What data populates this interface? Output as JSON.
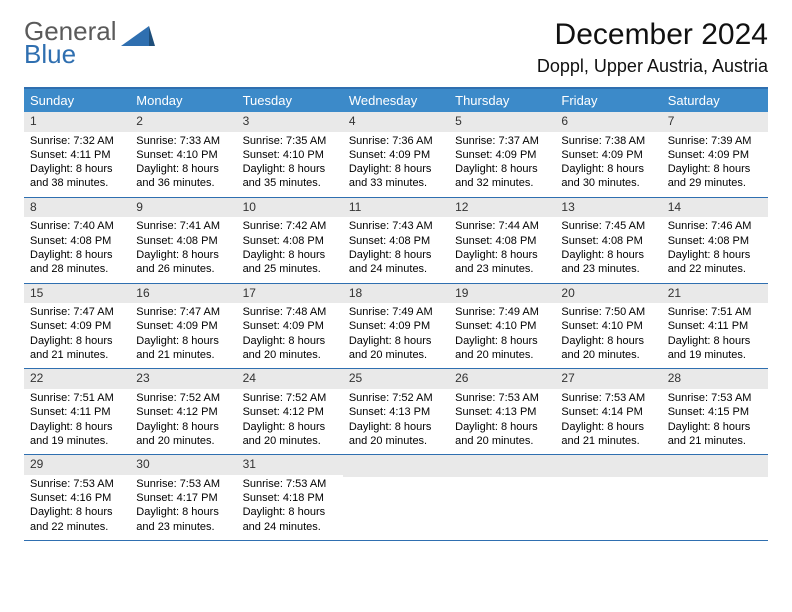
{
  "logo": {
    "text_top": "General",
    "text_bottom": "Blue"
  },
  "header": {
    "month_title": "December 2024",
    "location": "Doppl, Upper Austria, Austria"
  },
  "colors": {
    "header_bar": "#3c8ac9",
    "rule": "#2f6fb0",
    "daynum_bg": "#e9e9e9"
  },
  "days_of_week": [
    "Sunday",
    "Monday",
    "Tuesday",
    "Wednesday",
    "Thursday",
    "Friday",
    "Saturday"
  ],
  "weeks": [
    [
      {
        "n": "1",
        "sunrise": "Sunrise: 7:32 AM",
        "sunset": "Sunset: 4:11 PM",
        "day": "Daylight: 8 hours and 38 minutes."
      },
      {
        "n": "2",
        "sunrise": "Sunrise: 7:33 AM",
        "sunset": "Sunset: 4:10 PM",
        "day": "Daylight: 8 hours and 36 minutes."
      },
      {
        "n": "3",
        "sunrise": "Sunrise: 7:35 AM",
        "sunset": "Sunset: 4:10 PM",
        "day": "Daylight: 8 hours and 35 minutes."
      },
      {
        "n": "4",
        "sunrise": "Sunrise: 7:36 AM",
        "sunset": "Sunset: 4:09 PM",
        "day": "Daylight: 8 hours and 33 minutes."
      },
      {
        "n": "5",
        "sunrise": "Sunrise: 7:37 AM",
        "sunset": "Sunset: 4:09 PM",
        "day": "Daylight: 8 hours and 32 minutes."
      },
      {
        "n": "6",
        "sunrise": "Sunrise: 7:38 AM",
        "sunset": "Sunset: 4:09 PM",
        "day": "Daylight: 8 hours and 30 minutes."
      },
      {
        "n": "7",
        "sunrise": "Sunrise: 7:39 AM",
        "sunset": "Sunset: 4:09 PM",
        "day": "Daylight: 8 hours and 29 minutes."
      }
    ],
    [
      {
        "n": "8",
        "sunrise": "Sunrise: 7:40 AM",
        "sunset": "Sunset: 4:08 PM",
        "day": "Daylight: 8 hours and 28 minutes."
      },
      {
        "n": "9",
        "sunrise": "Sunrise: 7:41 AM",
        "sunset": "Sunset: 4:08 PM",
        "day": "Daylight: 8 hours and 26 minutes."
      },
      {
        "n": "10",
        "sunrise": "Sunrise: 7:42 AM",
        "sunset": "Sunset: 4:08 PM",
        "day": "Daylight: 8 hours and 25 minutes."
      },
      {
        "n": "11",
        "sunrise": "Sunrise: 7:43 AM",
        "sunset": "Sunset: 4:08 PM",
        "day": "Daylight: 8 hours and 24 minutes."
      },
      {
        "n": "12",
        "sunrise": "Sunrise: 7:44 AM",
        "sunset": "Sunset: 4:08 PM",
        "day": "Daylight: 8 hours and 23 minutes."
      },
      {
        "n": "13",
        "sunrise": "Sunrise: 7:45 AM",
        "sunset": "Sunset: 4:08 PM",
        "day": "Daylight: 8 hours and 23 minutes."
      },
      {
        "n": "14",
        "sunrise": "Sunrise: 7:46 AM",
        "sunset": "Sunset: 4:08 PM",
        "day": "Daylight: 8 hours and 22 minutes."
      }
    ],
    [
      {
        "n": "15",
        "sunrise": "Sunrise: 7:47 AM",
        "sunset": "Sunset: 4:09 PM",
        "day": "Daylight: 8 hours and 21 minutes."
      },
      {
        "n": "16",
        "sunrise": "Sunrise: 7:47 AM",
        "sunset": "Sunset: 4:09 PM",
        "day": "Daylight: 8 hours and 21 minutes."
      },
      {
        "n": "17",
        "sunrise": "Sunrise: 7:48 AM",
        "sunset": "Sunset: 4:09 PM",
        "day": "Daylight: 8 hours and 20 minutes."
      },
      {
        "n": "18",
        "sunrise": "Sunrise: 7:49 AM",
        "sunset": "Sunset: 4:09 PM",
        "day": "Daylight: 8 hours and 20 minutes."
      },
      {
        "n": "19",
        "sunrise": "Sunrise: 7:49 AM",
        "sunset": "Sunset: 4:10 PM",
        "day": "Daylight: 8 hours and 20 minutes."
      },
      {
        "n": "20",
        "sunrise": "Sunrise: 7:50 AM",
        "sunset": "Sunset: 4:10 PM",
        "day": "Daylight: 8 hours and 20 minutes."
      },
      {
        "n": "21",
        "sunrise": "Sunrise: 7:51 AM",
        "sunset": "Sunset: 4:11 PM",
        "day": "Daylight: 8 hours and 19 minutes."
      }
    ],
    [
      {
        "n": "22",
        "sunrise": "Sunrise: 7:51 AM",
        "sunset": "Sunset: 4:11 PM",
        "day": "Daylight: 8 hours and 19 minutes."
      },
      {
        "n": "23",
        "sunrise": "Sunrise: 7:52 AM",
        "sunset": "Sunset: 4:12 PM",
        "day": "Daylight: 8 hours and 20 minutes."
      },
      {
        "n": "24",
        "sunrise": "Sunrise: 7:52 AM",
        "sunset": "Sunset: 4:12 PM",
        "day": "Daylight: 8 hours and 20 minutes."
      },
      {
        "n": "25",
        "sunrise": "Sunrise: 7:52 AM",
        "sunset": "Sunset: 4:13 PM",
        "day": "Daylight: 8 hours and 20 minutes."
      },
      {
        "n": "26",
        "sunrise": "Sunrise: 7:53 AM",
        "sunset": "Sunset: 4:13 PM",
        "day": "Daylight: 8 hours and 20 minutes."
      },
      {
        "n": "27",
        "sunrise": "Sunrise: 7:53 AM",
        "sunset": "Sunset: 4:14 PM",
        "day": "Daylight: 8 hours and 21 minutes."
      },
      {
        "n": "28",
        "sunrise": "Sunrise: 7:53 AM",
        "sunset": "Sunset: 4:15 PM",
        "day": "Daylight: 8 hours and 21 minutes."
      }
    ],
    [
      {
        "n": "29",
        "sunrise": "Sunrise: 7:53 AM",
        "sunset": "Sunset: 4:16 PM",
        "day": "Daylight: 8 hours and 22 minutes."
      },
      {
        "n": "30",
        "sunrise": "Sunrise: 7:53 AM",
        "sunset": "Sunset: 4:17 PM",
        "day": "Daylight: 8 hours and 23 minutes."
      },
      {
        "n": "31",
        "sunrise": "Sunrise: 7:53 AM",
        "sunset": "Sunset: 4:18 PM",
        "day": "Daylight: 8 hours and 24 minutes."
      },
      {
        "empty": true
      },
      {
        "empty": true
      },
      {
        "empty": true
      },
      {
        "empty": true
      }
    ]
  ]
}
